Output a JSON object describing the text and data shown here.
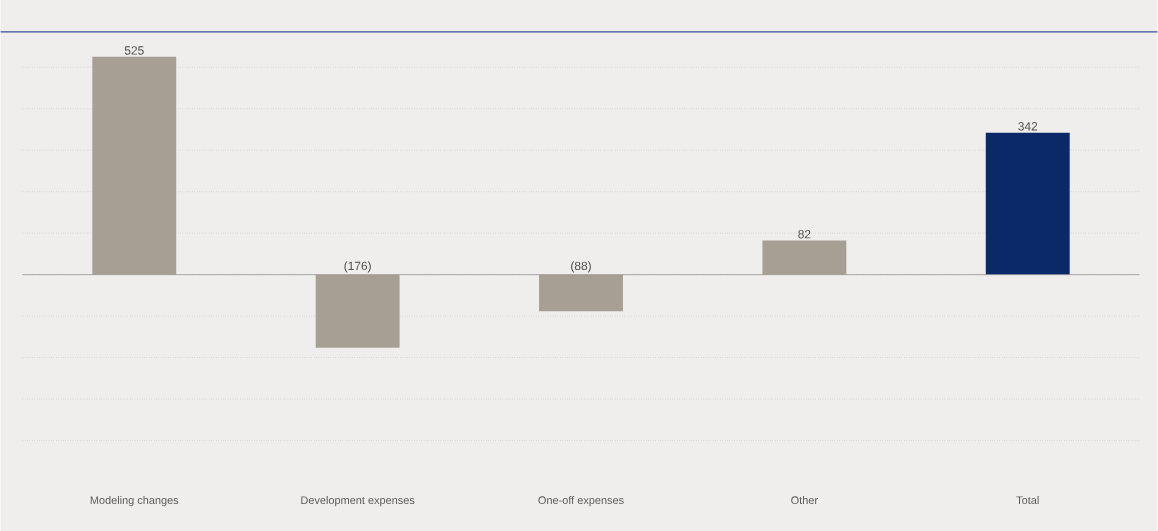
{
  "chart_data": {
    "type": "bar",
    "categories": [
      "Modeling changes",
      "Development expenses",
      "One-off expenses",
      "Other",
      "Total"
    ],
    "values": [
      525,
      -176,
      -88,
      82,
      342
    ],
    "colors": [
      "#a89f94",
      "#a89f94",
      "#a89f94",
      "#a89f94",
      "#0b2869"
    ],
    "value_labels": [
      "525",
      "(176)",
      "(88)",
      "82",
      "342"
    ],
    "ylim": [
      -400,
      585
    ],
    "yticks": [
      {
        "value": -400,
        "label": null
      },
      {
        "value": -300,
        "label": null
      },
      {
        "value": -200,
        "label": null
      },
      {
        "value": -100,
        "label": null
      },
      {
        "value": 0,
        "label": null
      },
      {
        "value": 100,
        "label": null
      },
      {
        "value": 200,
        "label": null
      },
      {
        "value": 300,
        "label": null
      },
      {
        "value": 400,
        "label": null
      },
      {
        "value": 500,
        "label": null
      }
    ],
    "grid": "y",
    "tick_labels": "x"
  }
}
